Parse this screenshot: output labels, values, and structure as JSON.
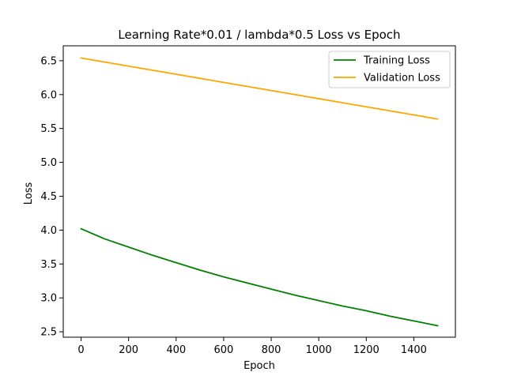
{
  "chart_data": {
    "type": "line",
    "title": "Learning Rate*0.01 / lambda*0.5 Loss vs Epoch",
    "xlabel": "Epoch",
    "ylabel": "Loss",
    "xlim": [
      -75,
      1575
    ],
    "ylim": [
      2.42,
      6.72
    ],
    "xticks": [
      0,
      200,
      400,
      600,
      800,
      1000,
      1200,
      1400
    ],
    "xtick_labels": [
      "0",
      "200",
      "400",
      "600",
      "800",
      "1000",
      "1200",
      "1400"
    ],
    "yticks": [
      2.5,
      3.0,
      3.5,
      4.0,
      4.5,
      5.0,
      5.5,
      6.0,
      6.5
    ],
    "ytick_labels": [
      "2.5",
      "3.0",
      "3.5",
      "4.0",
      "4.5",
      "5.0",
      "5.5",
      "6.0",
      "6.5"
    ],
    "grid": false,
    "legend_position": "top-right",
    "series": [
      {
        "name": "Training Loss",
        "color": "#008000",
        "x": [
          0,
          100,
          200,
          300,
          400,
          500,
          600,
          700,
          800,
          900,
          1000,
          1100,
          1200,
          1300,
          1400,
          1500
        ],
        "values": [
          4.02,
          3.87,
          3.75,
          3.63,
          3.52,
          3.41,
          3.31,
          3.22,
          3.13,
          3.04,
          2.96,
          2.88,
          2.81,
          2.73,
          2.66,
          2.59
        ]
      },
      {
        "name": "Validation Loss",
        "color": "#FFA500",
        "x": [
          0,
          100,
          200,
          300,
          400,
          500,
          600,
          700,
          800,
          900,
          1000,
          1100,
          1200,
          1300,
          1400,
          1500
        ],
        "values": [
          6.54,
          6.48,
          6.42,
          6.36,
          6.3,
          6.24,
          6.18,
          6.12,
          6.06,
          6.0,
          5.94,
          5.88,
          5.82,
          5.76,
          5.7,
          5.64
        ]
      }
    ]
  }
}
